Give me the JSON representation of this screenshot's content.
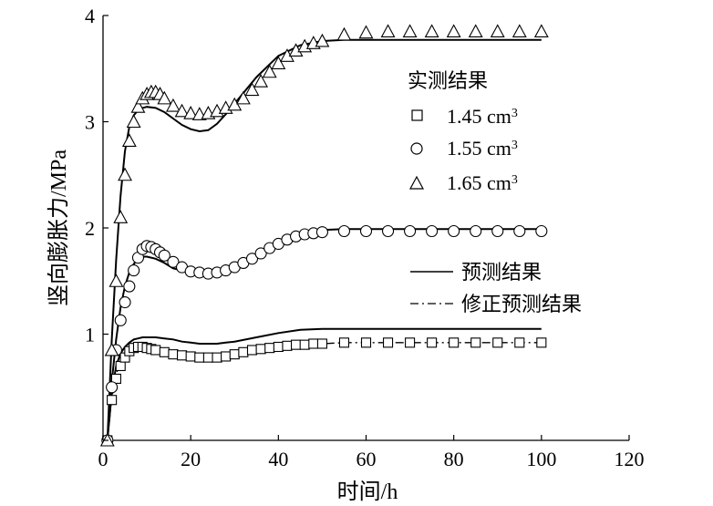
{
  "chart_data": {
    "type": "line",
    "title": "",
    "xlabel": "时间/h",
    "ylabel": "竖向膨胀力/MPa",
    "xlim": [
      0,
      120
    ],
    "ylim": [
      0,
      4
    ],
    "xticks": [
      "0",
      "20",
      "40",
      "60",
      "80",
      "100",
      "120"
    ],
    "yticks": [
      "0",
      "1",
      "2",
      "3",
      "4"
    ],
    "grid": false,
    "legend_placement": "right",
    "legend_measured_title": "实测结果",
    "legend_measured": [
      {
        "label": "1.45 cm",
        "sup": "3",
        "marker": "square"
      },
      {
        "label": "1.55 cm",
        "sup": "3",
        "marker": "circle"
      },
      {
        "label": "1.65 cm",
        "sup": "3",
        "marker": "triangle"
      }
    ],
    "legend_lines": [
      {
        "label": "预测结果",
        "style": "solid"
      },
      {
        "label": "修正预测结果",
        "style": "dashdot"
      }
    ],
    "measured_series": [
      {
        "marker": "square",
        "x": [
          1,
          2,
          3,
          4,
          5,
          6,
          7,
          8,
          9,
          10,
          11,
          12,
          14,
          16,
          18,
          20,
          22,
          24,
          26,
          28,
          30,
          32,
          34,
          36,
          38,
          40,
          42,
          44,
          46,
          48,
          50,
          55,
          60,
          65,
          70,
          75,
          80,
          85,
          90,
          95,
          100
        ],
        "y": [
          0,
          0.38,
          0.58,
          0.7,
          0.78,
          0.84,
          0.87,
          0.88,
          0.88,
          0.87,
          0.86,
          0.85,
          0.83,
          0.81,
          0.8,
          0.79,
          0.78,
          0.78,
          0.78,
          0.79,
          0.81,
          0.83,
          0.85,
          0.86,
          0.87,
          0.88,
          0.89,
          0.9,
          0.9,
          0.91,
          0.91,
          0.92,
          0.92,
          0.92,
          0.92,
          0.92,
          0.92,
          0.92,
          0.92,
          0.92,
          0.92
        ]
      },
      {
        "marker": "circle",
        "x": [
          1,
          2,
          3,
          4,
          5,
          6,
          7,
          8,
          9,
          10,
          11,
          12,
          13,
          14,
          16,
          18,
          20,
          22,
          24,
          26,
          28,
          30,
          32,
          34,
          36,
          38,
          40,
          42,
          44,
          46,
          48,
          50,
          55,
          60,
          65,
          70,
          75,
          80,
          85,
          90,
          95,
          100
        ],
        "y": [
          0,
          0.5,
          0.85,
          1.13,
          1.3,
          1.45,
          1.6,
          1.72,
          1.8,
          1.83,
          1.82,
          1.8,
          1.77,
          1.74,
          1.68,
          1.63,
          1.59,
          1.58,
          1.57,
          1.58,
          1.6,
          1.63,
          1.67,
          1.71,
          1.76,
          1.81,
          1.85,
          1.89,
          1.92,
          1.94,
          1.95,
          1.96,
          1.97,
          1.97,
          1.97,
          1.97,
          1.97,
          1.97,
          1.97,
          1.97,
          1.97,
          1.97
        ]
      },
      {
        "marker": "triangle",
        "x": [
          1,
          2,
          3,
          4,
          5,
          6,
          7,
          8,
          9,
          10,
          11,
          12,
          13,
          14,
          16,
          18,
          20,
          22,
          24,
          26,
          28,
          30,
          32,
          34,
          36,
          38,
          40,
          42,
          44,
          46,
          48,
          50,
          55,
          60,
          65,
          70,
          75,
          80,
          85,
          90,
          95,
          100
        ],
        "y": [
          0,
          0.85,
          1.5,
          2.1,
          2.5,
          2.82,
          3.0,
          3.14,
          3.22,
          3.26,
          3.28,
          3.28,
          3.26,
          3.22,
          3.15,
          3.1,
          3.08,
          3.07,
          3.08,
          3.1,
          3.13,
          3.16,
          3.22,
          3.3,
          3.38,
          3.47,
          3.55,
          3.62,
          3.67,
          3.71,
          3.74,
          3.76,
          3.82,
          3.84,
          3.85,
          3.85,
          3.85,
          3.85,
          3.85,
          3.85,
          3.85,
          3.85
        ]
      }
    ],
    "predicted_series": [
      {
        "x": [
          1,
          2,
          3,
          4,
          5,
          6,
          7,
          8,
          9,
          10,
          12,
          14,
          16,
          18,
          20,
          22,
          24,
          26,
          28,
          30,
          35,
          40,
          45,
          50,
          55,
          60,
          70,
          80,
          90,
          100
        ],
        "y": [
          0,
          0.45,
          0.7,
          0.82,
          0.88,
          0.92,
          0.95,
          0.96,
          0.97,
          0.97,
          0.97,
          0.96,
          0.95,
          0.93,
          0.92,
          0.91,
          0.91,
          0.91,
          0.92,
          0.93,
          0.97,
          1.01,
          1.04,
          1.05,
          1.05,
          1.05,
          1.05,
          1.05,
          1.05,
          1.05
        ]
      },
      {
        "x": [
          1,
          2,
          3,
          4,
          5,
          6,
          7,
          8,
          9,
          10,
          12,
          14,
          16,
          18,
          20,
          22,
          24,
          26,
          28,
          30,
          35,
          40,
          45,
          50,
          55,
          60,
          70,
          80,
          90,
          100
        ],
        "y": [
          0,
          0.55,
          0.95,
          1.25,
          1.45,
          1.58,
          1.66,
          1.71,
          1.73,
          1.73,
          1.71,
          1.67,
          1.62,
          1.6,
          1.58,
          1.57,
          1.57,
          1.58,
          1.6,
          1.64,
          1.76,
          1.88,
          1.95,
          1.98,
          1.99,
          1.99,
          1.99,
          1.99,
          1.99,
          1.99
        ]
      },
      {
        "x": [
          1,
          2,
          3,
          4,
          5,
          6,
          7,
          8,
          9,
          10,
          12,
          14,
          16,
          18,
          20,
          22,
          24,
          26,
          28,
          30,
          35,
          40,
          45,
          50,
          55,
          60,
          70,
          80,
          90,
          100
        ],
        "y": [
          0,
          0.95,
          1.7,
          2.3,
          2.72,
          2.95,
          3.06,
          3.11,
          3.13,
          3.14,
          3.13,
          3.09,
          3.03,
          2.97,
          2.93,
          2.91,
          2.92,
          2.98,
          3.07,
          3.17,
          3.42,
          3.62,
          3.72,
          3.76,
          3.77,
          3.77,
          3.77,
          3.77,
          3.77,
          3.77
        ]
      }
    ],
    "corrected_series": [
      {
        "x": [
          1,
          2,
          3,
          4,
          5,
          6,
          7,
          8,
          9,
          10,
          12,
          14,
          16,
          18,
          20,
          22,
          24,
          26,
          28,
          30,
          35,
          40,
          45,
          50,
          55,
          60,
          70,
          80,
          90,
          100
        ],
        "y": [
          0,
          0.4,
          0.62,
          0.74,
          0.81,
          0.85,
          0.87,
          0.88,
          0.88,
          0.87,
          0.85,
          0.83,
          0.81,
          0.79,
          0.78,
          0.77,
          0.77,
          0.78,
          0.79,
          0.8,
          0.84,
          0.87,
          0.89,
          0.91,
          0.92,
          0.92,
          0.92,
          0.92,
          0.92,
          0.92
        ]
      }
    ]
  }
}
